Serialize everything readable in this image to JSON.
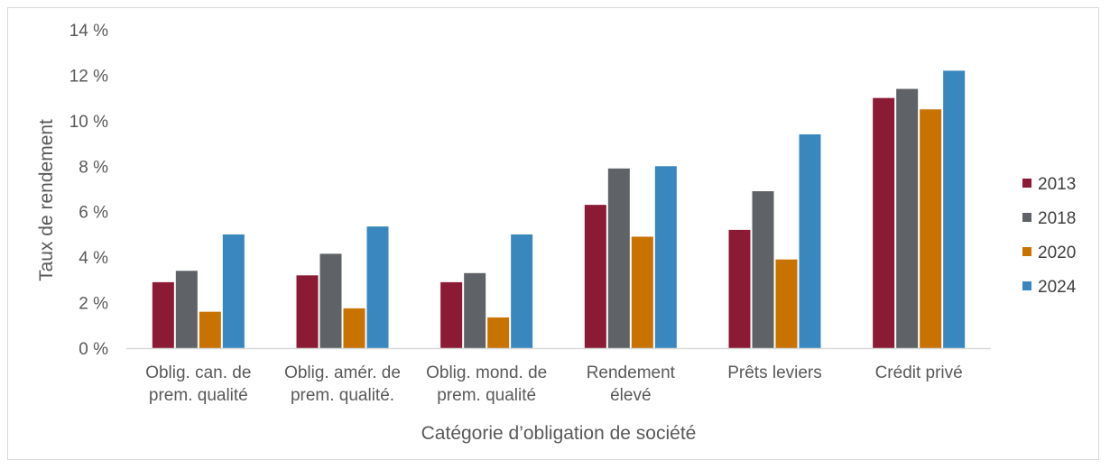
{
  "chart_data": {
    "type": "bar",
    "title": "",
    "xlabel": "Catégorie d’obligation de société",
    "ylabel": "Taux de rendement",
    "ylim": [
      0,
      14
    ],
    "y_ticks": [
      "0 %",
      "2 %",
      "4 %",
      "6 %",
      "8 %",
      "10 %",
      "12 %",
      "14 %"
    ],
    "y_tick_values": [
      0,
      2,
      4,
      6,
      8,
      10,
      12,
      14
    ],
    "grid": false,
    "legend_position": "right",
    "categories": [
      [
        "Oblig. can. de",
        "prem. qualité"
      ],
      [
        "Oblig. amér. de",
        "prem. qualité."
      ],
      [
        "Oblig. mond. de",
        "prem. qualité"
      ],
      [
        "Rendement",
        "élevé"
      ],
      [
        "Prêts leviers"
      ],
      [
        "Crédit privé"
      ]
    ],
    "series": [
      {
        "name": "2013",
        "color": "#8b1a34",
        "values": [
          2.9,
          3.2,
          2.9,
          6.3,
          5.2,
          11.0
        ]
      },
      {
        "name": "2018",
        "color": "#5f6266",
        "values": [
          3.4,
          4.15,
          3.3,
          7.9,
          6.9,
          11.4
        ]
      },
      {
        "name": "2020",
        "color": "#c87300",
        "values": [
          1.6,
          1.75,
          1.35,
          4.9,
          3.9,
          10.5
        ]
      },
      {
        "name": "2024",
        "color": "#3a87bf",
        "values": [
          5.0,
          5.35,
          5.0,
          8.0,
          9.4,
          12.2
        ]
      }
    ]
  }
}
